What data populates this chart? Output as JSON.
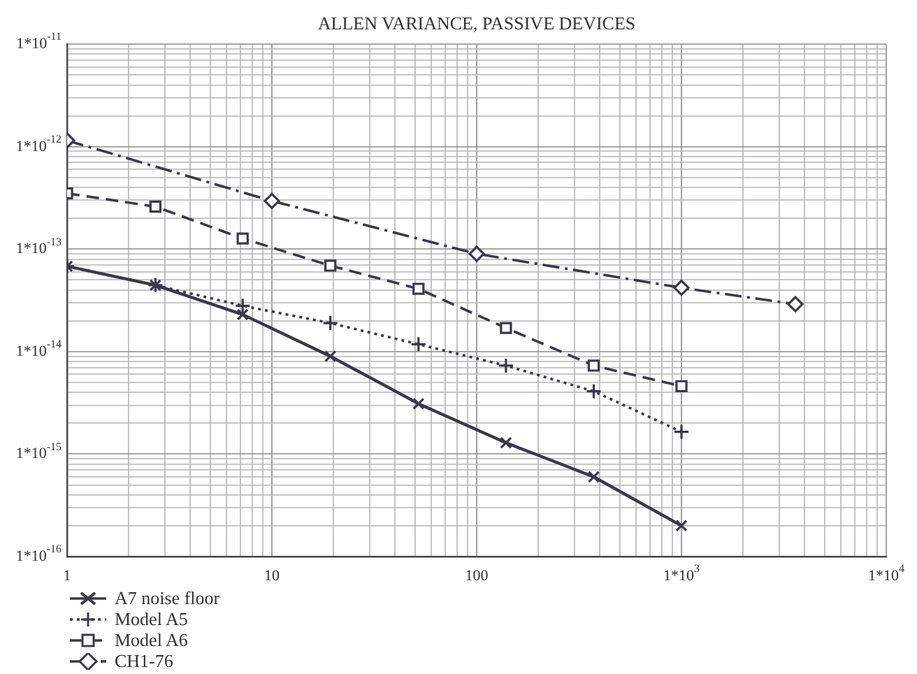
{
  "chart_data": {
    "type": "line",
    "title": "ALLEN VARIANCE, PASSIVE DEVICES",
    "log": "xy",
    "grid": true,
    "legend": "bottom left",
    "xlim": [
      1,
      10000
    ],
    "xticks": [
      1,
      10,
      100,
      {
        "value": 1000,
        "label": "1*10$^{3}$"
      },
      {
        "value": 10000,
        "label": "1*10$^{4}$"
      }
    ],
    "ylim": [
      1e-16,
      1e-11
    ],
    "yticks": [
      {
        "value": 1e-16,
        "label": "1*10$^{-16}$"
      },
      {
        "value": 1e-15,
        "label": "1*10$^{-15}$"
      },
      {
        "value": 1e-14,
        "label": "1*10$^{-14}$"
      },
      {
        "value": 1e-13,
        "label": "1*10$^{-13}$"
      },
      {
        "value": 1e-12,
        "label": "1*10$^{-12}$"
      },
      {
        "value": 1e-11,
        "label": "1*10$^{-11}$"
      }
    ],
    "series": [
      {
        "name": "A7 noise floor",
        "color": "#3a3a46",
        "marker": "cross",
        "line_style": "solid",
        "x": [
          1,
          2.7,
          7.2,
          19.3,
          52,
          139,
          373,
          1000
        ],
        "values": [
          6.8e-14,
          4.45e-14,
          2.3e-14,
          9e-15,
          3.1e-15,
          1.29e-15,
          6e-16,
          2e-16
        ]
      },
      {
        "name": "Model A5",
        "color": "#3a3a46",
        "marker": "plus",
        "line_style": "dotted",
        "x": [
          1,
          2.7,
          7.2,
          19.3,
          52,
          139,
          373,
          1000
        ],
        "values": [
          6.8e-14,
          4.45e-14,
          2.8e-14,
          1.9e-14,
          1.18e-14,
          7.3e-15,
          4.1e-15,
          1.65e-15
        ]
      },
      {
        "name": "Model A6",
        "color": "#3a3a46",
        "marker": "square",
        "line_style": "dashed",
        "x": [
          1,
          2.7,
          7.2,
          19.3,
          52,
          139,
          373,
          1000
        ],
        "values": [
          3.5e-13,
          2.6e-13,
          1.27e-13,
          6.9e-14,
          4.1e-14,
          1.7e-14,
          7.3e-15,
          4.6e-15
        ]
      },
      {
        "name": "CH1-76",
        "color": "#3a3a46",
        "marker": "diamond",
        "line_style": "dashdot",
        "x": [
          1,
          10,
          100,
          1000,
          3600
        ],
        "values": [
          1.15e-12,
          2.95e-13,
          9e-14,
          4.2e-14,
          2.9e-14
        ]
      }
    ]
  }
}
